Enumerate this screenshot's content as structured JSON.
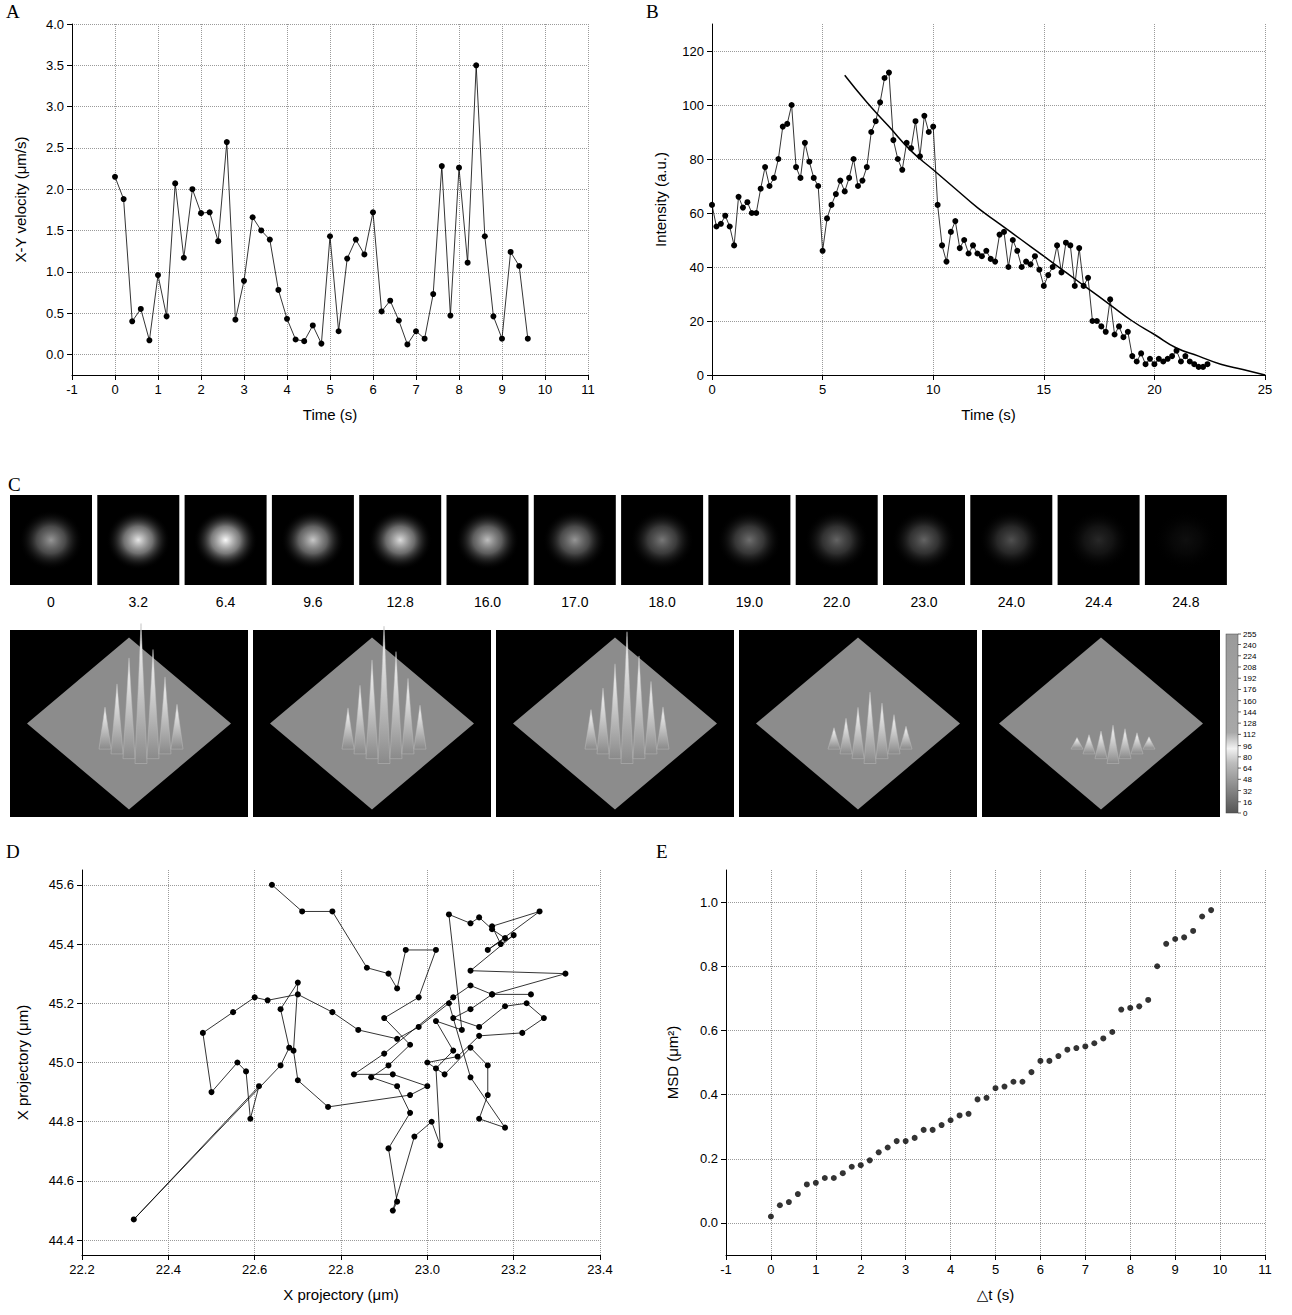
{
  "chart_data": [
    {
      "title": "A",
      "type": "line",
      "marker": "circle",
      "line_style": "solid",
      "color": "#000000",
      "grid": true,
      "x_label": "Time (s)",
      "y_label": "X-Y velocity (μm/s)",
      "xlim": [
        -1,
        11
      ],
      "xticks": [
        -1,
        0,
        1,
        2,
        3,
        4,
        5,
        6,
        7,
        8,
        9,
        10,
        11
      ],
      "ylim": [
        -0.25,
        4.0
      ],
      "yticks": [
        {
          "value": 0,
          "label": "0.0"
        },
        0.5,
        {
          "value": 1,
          "label": "1.0"
        },
        1.5,
        {
          "value": 2,
          "label": "2.0"
        },
        2.5,
        {
          "value": 3,
          "label": "3.0"
        },
        3.5,
        {
          "value": 4,
          "label": "4.0"
        }
      ],
      "x": [
        0,
        0.2,
        0.4,
        0.6,
        0.8,
        1.0,
        1.2,
        1.4,
        1.6,
        1.8,
        2.0,
        2.2,
        2.4,
        2.6,
        2.8,
        3.0,
        3.2,
        3.4,
        3.6,
        3.8,
        4.0,
        4.2,
        4.4,
        4.6,
        4.8,
        5.0,
        5.2,
        5.4,
        5.6,
        5.8,
        6.0,
        6.2,
        6.4,
        6.6,
        6.8,
        7.0,
        7.2,
        7.4,
        7.6,
        7.8,
        8.0,
        8.2,
        8.4,
        8.6,
        8.8,
        9.0,
        9.2,
        9.4,
        9.6
      ],
      "values": [
        2.15,
        1.88,
        0.4,
        0.55,
        0.17,
        0.96,
        0.46,
        2.07,
        1.17,
        2.0,
        1.71,
        1.72,
        1.37,
        2.57,
        0.42,
        0.89,
        1.66,
        1.5,
        1.39,
        0.78,
        0.43,
        0.18,
        0.16,
        0.35,
        0.13,
        1.43,
        0.28,
        1.16,
        1.39,
        1.21,
        1.72,
        0.52,
        0.65,
        0.41,
        0.12,
        0.28,
        0.19,
        0.73,
        2.28,
        0.47,
        2.26,
        1.11,
        3.5,
        1.43,
        0.46,
        0.19,
        1.24,
        1.07,
        0.19
      ]
    },
    {
      "title": "B",
      "type": "line",
      "grid": true,
      "x_label": "Time (s)",
      "y_label": "Intensity (a.u.)",
      "xlim": [
        0,
        25
      ],
      "xticks": [
        0,
        5,
        10,
        15,
        20,
        25
      ],
      "ylim": [
        0,
        130
      ],
      "yticks": [
        0,
        20,
        40,
        60,
        80,
        100,
        120
      ],
      "series": [
        {
          "type": "line",
          "marker": "circle",
          "line_style": "solid",
          "color": "#000000",
          "x": [
            0,
            0.2,
            0.4,
            0.6,
            0.8,
            1.0,
            1.2,
            1.4,
            1.6,
            1.8,
            2.0,
            2.2,
            2.4,
            2.6,
            2.8,
            3.0,
            3.2,
            3.4,
            3.6,
            3.8,
            4.0,
            4.2,
            4.4,
            4.6,
            4.8,
            5.0,
            5.2,
            5.4,
            5.6,
            5.8,
            6.0,
            6.2,
            6.4,
            6.6,
            6.8,
            7.0,
            7.2,
            7.4,
            7.6,
            7.8,
            8.0,
            8.2,
            8.4,
            8.6,
            8.8,
            9.0,
            9.2,
            9.4,
            9.6,
            9.8,
            10.0,
            10.2,
            10.4,
            10.6,
            10.8,
            11.0,
            11.2,
            11.4,
            11.6,
            11.8,
            12.0,
            12.2,
            12.4,
            12.6,
            12.8,
            13.0,
            13.2,
            13.4,
            13.6,
            13.8,
            14.0,
            14.2,
            14.4,
            14.6,
            14.8,
            15.0,
            15.2,
            15.4,
            15.6,
            15.8,
            16.0,
            16.2,
            16.4,
            16.6,
            16.8,
            17.0,
            17.2,
            17.4,
            17.6,
            17.8,
            18.0,
            18.2,
            18.4,
            18.6,
            18.8,
            19.0,
            19.2,
            19.4,
            19.6,
            19.8,
            20.0,
            20.2,
            20.4,
            20.6,
            20.8,
            21.0,
            21.2,
            21.4,
            21.6,
            21.8,
            22.0,
            22.2,
            22.4
          ],
          "values": [
            63,
            55,
            56,
            59,
            55,
            48,
            66,
            62,
            64,
            60,
            60,
            69,
            77,
            70,
            73,
            80,
            92,
            93,
            100,
            77,
            73,
            86,
            79,
            73,
            70,
            46,
            58,
            63,
            67,
            72,
            68,
            73,
            80,
            70,
            72,
            77,
            90,
            94,
            101,
            110,
            112,
            87,
            80,
            76,
            86,
            84,
            94,
            81,
            96,
            90,
            92,
            63,
            48,
            42,
            53,
            57,
            47,
            50,
            45,
            48,
            45,
            44,
            46,
            43,
            42,
            52,
            53,
            40,
            50,
            46,
            40,
            42,
            41,
            44,
            39,
            33,
            37,
            40,
            48,
            38,
            49,
            48,
            33,
            47,
            33,
            36,
            20,
            20,
            18,
            16,
            28,
            15,
            18,
            14,
            16,
            7,
            5,
            8,
            4,
            6,
            4,
            6,
            5,
            6,
            7,
            9,
            5,
            7,
            5,
            4,
            3,
            3,
            4
          ]
        },
        {
          "type": "line",
          "marker": "none",
          "line_style": "solid",
          "color": "#000000",
          "x": [
            6,
            7,
            8,
            9,
            10,
            11,
            12,
            13,
            14,
            15,
            16,
            17,
            18,
            19,
            20,
            21,
            22,
            23,
            24,
            25
          ],
          "values": [
            111,
            101,
            92,
            83,
            76,
            69,
            62,
            56,
            50,
            44,
            38,
            32,
            26,
            20,
            15,
            10,
            7,
            4,
            2,
            0
          ]
        }
      ]
    },
    {
      "title": "D",
      "type": "line",
      "marker": "circle",
      "line_style": "solid",
      "color": "#000000",
      "grid": true,
      "x_label": "X projectory (μm)",
      "y_label": "X projectory (μm)",
      "xlim": [
        22.2,
        23.4
      ],
      "xticks": [
        22.2,
        22.4,
        22.6,
        22.8,
        {
          "value": 23,
          "label": "23.0"
        },
        23.2,
        23.4
      ],
      "ylim": [
        44.35,
        45.65
      ],
      "yticks": [
        44.4,
        44.6,
        44.8,
        {
          "value": 45,
          "label": "45.0"
        },
        45.2,
        45.4,
        45.6
      ],
      "x": [
        22.64,
        22.71,
        22.78,
        22.86,
        22.91,
        22.93,
        22.95,
        23.02,
        22.98,
        22.9,
        22.96,
        22.91,
        22.87,
        22.93,
        22.96,
        22.91,
        22.93,
        22.92,
        22.97,
        23.01,
        23.03,
        23.02,
        23.06,
        23.02,
        23.08,
        23.05,
        23.1,
        23.12,
        23.15,
        23.18,
        23.14,
        23.26,
        23.15,
        23.17,
        23.2,
        23.1,
        23.32,
        23.15,
        23.1,
        23.06,
        23.12,
        23.18,
        23.23,
        23.27,
        23.22,
        23.12,
        23.07,
        23.0,
        23.04,
        23.1,
        23.14,
        23.14,
        23.12,
        23.18,
        23.1,
        23.05,
        22.98,
        22.93,
        22.84,
        22.78,
        22.7,
        22.63,
        22.6,
        22.55,
        22.48,
        22.5,
        22.56,
        22.58,
        22.59,
        22.61,
        22.32,
        22.66,
        22.68,
        22.66,
        22.7,
        22.69,
        22.7,
        22.77,
        22.96,
        23.0,
        22.92,
        22.83,
        22.9,
        23.06,
        23.1,
        23.15,
        23.24
      ],
      "values": [
        45.6,
        45.51,
        45.51,
        45.32,
        45.3,
        45.25,
        45.38,
        45.38,
        45.22,
        45.15,
        45.06,
        44.99,
        44.95,
        44.92,
        44.83,
        44.71,
        44.53,
        44.5,
        44.75,
        44.8,
        44.72,
        44.98,
        45.04,
        45.14,
        45.11,
        45.5,
        45.47,
        45.49,
        45.45,
        45.42,
        45.38,
        45.51,
        45.46,
        45.4,
        45.43,
        45.31,
        45.3,
        45.23,
        45.18,
        45.15,
        45.12,
        45.19,
        45.2,
        45.15,
        45.1,
        45.09,
        45.02,
        45.0,
        44.96,
        45.05,
        44.99,
        44.89,
        44.81,
        44.78,
        44.95,
        45.2,
        45.12,
        45.08,
        45.11,
        45.17,
        45.23,
        45.21,
        45.22,
        45.17,
        45.1,
        44.9,
        45.0,
        44.97,
        44.81,
        44.92,
        44.47,
        44.99,
        45.05,
        45.18,
        45.27,
        45.04,
        44.94,
        44.85,
        44.89,
        44.92,
        44.96,
        44.96,
        45.03,
        45.22,
        45.26,
        45.23,
        45.23
      ]
    },
    {
      "title": "E",
      "type": "scatter",
      "marker": "circle",
      "color": "#000000",
      "grid": true,
      "x_label": "△t (s)",
      "y_label": "MSD (μm²)",
      "xlim": [
        -1,
        11
      ],
      "xticks": [
        -1,
        0,
        1,
        2,
        3,
        4,
        5,
        6,
        7,
        8,
        9,
        10,
        11
      ],
      "ylim": [
        -0.1,
        1.1
      ],
      "yticks": [
        {
          "value": 0,
          "label": "0.0"
        },
        0.2,
        0.4,
        0.6,
        0.8,
        {
          "value": 1,
          "label": "1.0"
        }
      ],
      "x": [
        0,
        0.2,
        0.4,
        0.6,
        0.8,
        1.0,
        1.2,
        1.4,
        1.6,
        1.8,
        2.0,
        2.2,
        2.4,
        2.6,
        2.8,
        3.0,
        3.2,
        3.4,
        3.6,
        3.8,
        4.0,
        4.2,
        4.4,
        4.6,
        4.8,
        5.0,
        5.2,
        5.4,
        5.6,
        5.8,
        6.0,
        6.2,
        6.4,
        6.6,
        6.8,
        7.0,
        7.2,
        7.4,
        7.6,
        7.8,
        8.0,
        8.2,
        8.4,
        8.6,
        8.8,
        9.0,
        9.2,
        9.4,
        9.6,
        9.8
      ],
      "values": [
        0.02,
        0.055,
        0.065,
        0.09,
        0.12,
        0.125,
        0.14,
        0.14,
        0.155,
        0.175,
        0.18,
        0.195,
        0.22,
        0.235,
        0.255,
        0.255,
        0.265,
        0.29,
        0.29,
        0.305,
        0.32,
        0.335,
        0.34,
        0.385,
        0.39,
        0.42,
        0.425,
        0.44,
        0.44,
        0.47,
        0.505,
        0.505,
        0.52,
        0.54,
        0.545,
        0.55,
        0.56,
        0.575,
        0.595,
        0.665,
        0.67,
        0.675,
        0.695,
        0.8,
        0.87,
        0.885,
        0.89,
        0.91,
        0.955,
        0.975
      ]
    }
  ],
  "image_panel": {
    "title": "C",
    "frames": [
      {
        "label": "0",
        "intensity": 150
      },
      {
        "label": "3.2",
        "intensity": 230
      },
      {
        "label": "6.4",
        "intensity": 250
      },
      {
        "label": "9.6",
        "intensity": 200
      },
      {
        "label": "12.8",
        "intensity": 220
      },
      {
        "label": "16.0",
        "intensity": 190
      },
      {
        "label": "17.0",
        "intensity": 150
      },
      {
        "label": "18.0",
        "intensity": 120
      },
      {
        "label": "19.0",
        "intensity": 110
      },
      {
        "label": "22.0",
        "intensity": 100
      },
      {
        "label": "23.0",
        "intensity": 100
      },
      {
        "label": "24.0",
        "intensity": 80
      },
      {
        "label": "24.4",
        "intensity": 40
      },
      {
        "label": "24.8",
        "intensity": 15
      }
    ],
    "surface_peaks": [
      255,
      250,
      240,
      130,
      70
    ],
    "colorbar": {
      "range": [
        0,
        255
      ],
      "ticks": [
        0,
        16,
        32,
        48,
        64,
        80,
        96,
        112,
        128,
        144,
        160,
        176,
        192,
        208,
        224,
        240,
        255
      ]
    }
  }
}
